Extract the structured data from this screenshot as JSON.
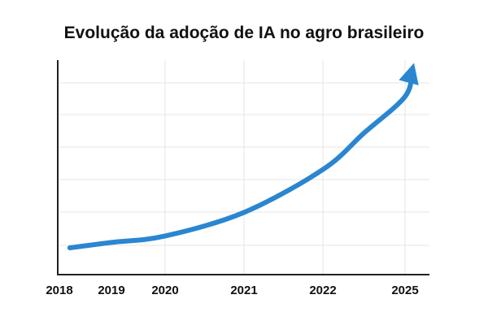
{
  "chart_data": {
    "type": "line",
    "title": "Evolução da adoção de IA no agro brasileiro",
    "xlabel": "",
    "ylabel": "",
    "categories": [
      "2018",
      "2019",
      "2020",
      "2021",
      "2022",
      "2025"
    ],
    "ylim": [
      0,
      1
    ],
    "grid": true,
    "legend": "none",
    "arrow_end": true,
    "series": [
      {
        "x": [
          2018.2,
          2019,
          2020,
          2021,
          2022,
          2023.5,
          2025,
          2025.25
        ],
        "values": [
          0.125,
          0.15,
          0.18,
          0.29,
          0.49,
          0.66,
          0.83,
          0.95
        ],
        "color": "#2a86d1"
      }
    ],
    "axis_color": "#222222",
    "grid_color": "#e6e6e6"
  }
}
